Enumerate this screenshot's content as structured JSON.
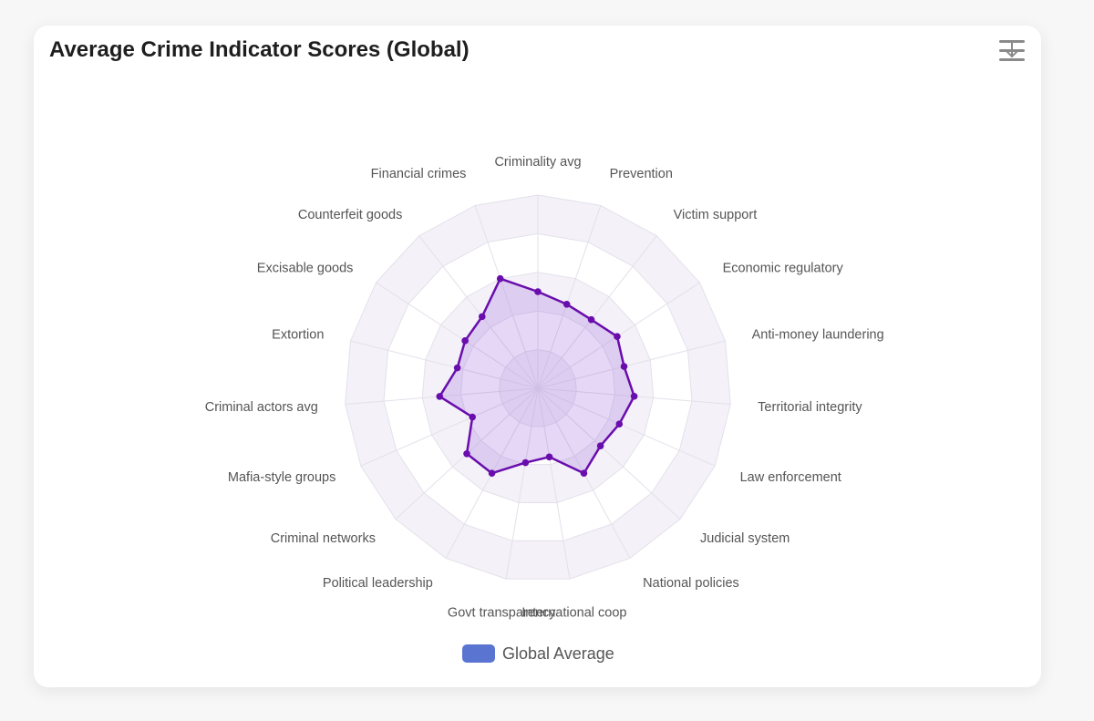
{
  "title": "Average Crime Indicator Scores (Global)",
  "menu_icon": "download-menu-icon",
  "colors": {
    "series_line": "#6a0dad",
    "series_fill": "rgba(160,110,220,0.28)",
    "grid_line": "#e3e0ea",
    "band_fill": "#f4f2f8",
    "legend_swatch": "#5a74d2"
  },
  "chart_data": {
    "type": "radar",
    "title": "Average Crime Indicator Scores (Global)",
    "categories": [
      "Criminality avg",
      "Prevention",
      "Victim support",
      "Economic regulatory",
      "Anti-money laundering",
      "Territorial integrity",
      "Law enforcement",
      "Judicial system",
      "National policies",
      "International coop",
      "Govt transparency",
      "Political leadership",
      "Criminal networks",
      "Mafia-style groups",
      "Criminal actors avg",
      "Extortion",
      "Excisable goods",
      "Counterfeit goods",
      "Financial crimes"
    ],
    "series": [
      {
        "name": "Global Average",
        "values": [
          5.0,
          4.6,
          4.5,
          4.9,
          4.6,
          5.0,
          4.6,
          4.4,
          5.0,
          3.6,
          3.9,
          5.0,
          5.0,
          3.7,
          5.1,
          4.3,
          4.5,
          4.7,
          6.0
        ]
      }
    ],
    "rlim": [
      0,
      10
    ],
    "grid_levels": 5,
    "legend": {
      "position": "bottom",
      "entries": [
        "Global Average"
      ]
    }
  }
}
